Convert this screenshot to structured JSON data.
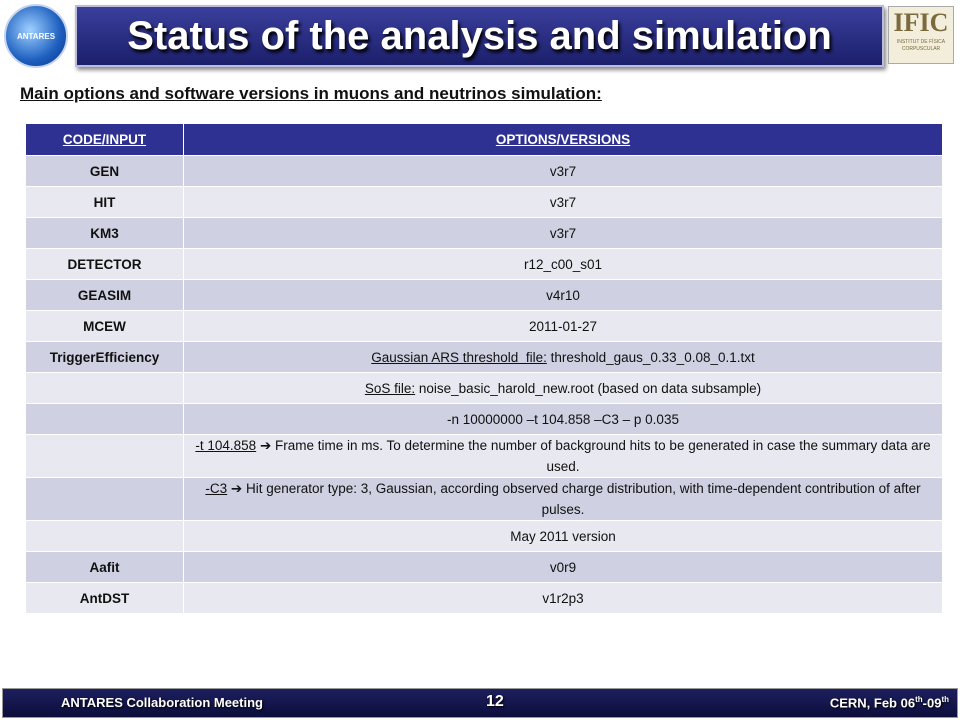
{
  "header": {
    "title": "Status of the analysis and simulation",
    "left_logo": "ANTARES",
    "right_logo": "IFIC",
    "right_logo_sub": "INSTITUT DE FÍSICA CORPUSCULAR"
  },
  "subtitle": "Main options and software versions in muons and neutrinos simulation:",
  "table": {
    "header": [
      "CODE/INPUT",
      "OPTIONS/VERSIONS"
    ],
    "rows": [
      {
        "code": "GEN",
        "options": [
          {
            "text": "v3r7"
          }
        ]
      },
      {
        "code": "HIT",
        "options": [
          {
            "text": "v3r7"
          }
        ]
      },
      {
        "code": "KM3",
        "options": [
          {
            "text": "v3r7"
          }
        ]
      },
      {
        "code": "DETECTOR",
        "options": [
          {
            "text": "r12_c00_s01"
          }
        ]
      },
      {
        "code": "GEASIM",
        "options": [
          {
            "text": "v4r10"
          }
        ]
      },
      {
        "code": "MCEW",
        "options": [
          {
            "text": "2011-01-27"
          }
        ]
      },
      {
        "code": "TriggerEfficiency",
        "options": [
          {
            "text": "Gaussian ARS threshold  file:",
            "underline": true
          },
          {
            "text": " threshold_gaus_0.33_0.08_0.1.txt"
          }
        ]
      },
      {
        "code": null,
        "options": [
          {
            "text": "SoS file:",
            "underline": true
          },
          {
            "text": " noise_basic_harold_new.root (based on data subsample)"
          }
        ]
      },
      {
        "code": null,
        "options": [
          {
            "text": "-n 10000000 –t 104.858 –C3 – p 0.035"
          }
        ]
      },
      {
        "code": null,
        "options": [
          {
            "text": "-t 104.858",
            "underline": true
          },
          {
            "text": " ➔ Frame time in ms. To determine the number of background hits to be generated in case the summary data are used."
          }
        ]
      },
      {
        "code": null,
        "options": [
          {
            "text": "-C3",
            "underline": true
          },
          {
            "text": " ➔ Hit generator type: 3, Gaussian, according observed charge distribution, with time-dependent contribution of after pulses."
          }
        ]
      },
      {
        "code": null,
        "options": [
          {
            "text": "May 2011 version"
          }
        ]
      },
      {
        "code": "Aafit",
        "options": [
          {
            "text": "v0r9"
          }
        ]
      },
      {
        "code": "AntDST",
        "options": [
          {
            "text": "v1r2p3"
          }
        ]
      }
    ]
  },
  "footer": {
    "left": "ANTARES Collaboration Meeting",
    "page": "12",
    "right": [
      {
        "text": "CERN, Feb 06"
      },
      {
        "text": "th",
        "sup": true
      },
      {
        "text": "-09"
      },
      {
        "text": "th",
        "sup": true
      }
    ]
  }
}
